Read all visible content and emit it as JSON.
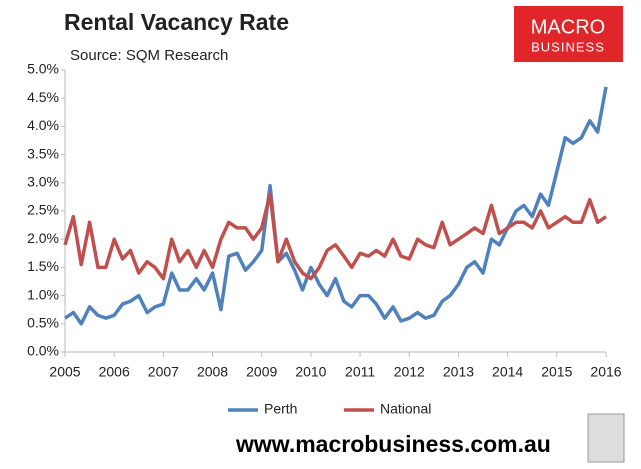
{
  "chart_data": {
    "type": "line",
    "title": "Rental Vacancy Rate",
    "subtitle": "Source: SQM Research",
    "logo": [
      "MACRO",
      "BUSINESS"
    ],
    "footer": "www.macrobusiness.com.au",
    "x": [
      2005,
      2005.17,
      2005.33,
      2005.5,
      2005.67,
      2005.83,
      2006,
      2006.17,
      2006.33,
      2006.5,
      2006.67,
      2006.83,
      2007,
      2007.17,
      2007.33,
      2007.5,
      2007.67,
      2007.83,
      2008,
      2008.17,
      2008.33,
      2008.5,
      2008.67,
      2008.83,
      2009,
      2009.17,
      2009.33,
      2009.5,
      2009.67,
      2009.83,
      2010,
      2010.17,
      2010.33,
      2010.5,
      2010.67,
      2010.83,
      2011,
      2011.17,
      2011.33,
      2011.5,
      2011.67,
      2011.83,
      2012,
      2012.17,
      2012.33,
      2012.5,
      2012.67,
      2012.83,
      2013,
      2013.17,
      2013.33,
      2013.5,
      2013.67,
      2013.83,
      2014,
      2014.17,
      2014.33,
      2014.5,
      2014.67,
      2014.83,
      2015,
      2015.17,
      2015.33,
      2015.5,
      2015.67,
      2015.83,
      2016
    ],
    "series": [
      {
        "name": "Perth",
        "color": "#4f81bd",
        "values": [
          0.6,
          0.7,
          0.5,
          0.8,
          0.65,
          0.6,
          0.65,
          0.85,
          0.9,
          1.0,
          0.7,
          0.8,
          0.85,
          1.4,
          1.1,
          1.1,
          1.3,
          1.1,
          1.4,
          0.75,
          1.7,
          1.75,
          1.45,
          1.6,
          1.8,
          2.95,
          1.6,
          1.75,
          1.45,
          1.1,
          1.5,
          1.2,
          1.0,
          1.3,
          0.9,
          0.8,
          1.0,
          1.0,
          0.85,
          0.6,
          0.8,
          0.55,
          0.6,
          0.7,
          0.6,
          0.65,
          0.9,
          1.0,
          1.2,
          1.5,
          1.6,
          1.4,
          2.0,
          1.9,
          2.2,
          2.5,
          2.6,
          2.4,
          2.8,
          2.6,
          3.2,
          3.8,
          3.7,
          3.8,
          4.1,
          3.9,
          4.7
        ]
      },
      {
        "name": "National",
        "color": "#c0504d",
        "values": [
          1.9,
          2.4,
          1.55,
          2.3,
          1.5,
          1.5,
          2.0,
          1.65,
          1.8,
          1.4,
          1.6,
          1.5,
          1.3,
          2.0,
          1.6,
          1.8,
          1.5,
          1.8,
          1.5,
          2.0,
          2.3,
          2.2,
          2.2,
          2.0,
          2.2,
          2.8,
          1.6,
          2.0,
          1.6,
          1.4,
          1.3,
          1.5,
          1.8,
          1.9,
          1.7,
          1.5,
          1.75,
          1.7,
          1.8,
          1.7,
          2.0,
          1.7,
          1.65,
          2.0,
          1.9,
          1.85,
          2.3,
          1.9,
          2.0,
          2.1,
          2.2,
          2.1,
          2.6,
          2.1,
          2.2,
          2.3,
          2.3,
          2.2,
          2.5,
          2.2,
          2.3,
          2.4,
          2.3,
          2.3,
          2.7,
          2.3,
          2.4
        ]
      }
    ],
    "xlim": [
      2005,
      2016
    ],
    "xticks": [
      2005,
      2006,
      2007,
      2008,
      2009,
      2010,
      2011,
      2012,
      2013,
      2014,
      2015,
      2016
    ],
    "ylim": [
      0,
      5
    ],
    "yticks": [
      {
        "value": 0,
        "label": "0.0%"
      },
      {
        "value": 0.5,
        "label": "0.5%"
      },
      {
        "value": 1,
        "label": "1.0%"
      },
      {
        "value": 1.5,
        "label": "1.5%"
      },
      {
        "value": 2,
        "label": "2.0%"
      },
      {
        "value": 2.5,
        "label": "2.5%"
      },
      {
        "value": 3,
        "label": "3.0%"
      },
      {
        "value": 3.5,
        "label": "3.5%"
      },
      {
        "value": 4,
        "label": "4.0%"
      },
      {
        "value": 4.5,
        "label": "4.5%"
      },
      {
        "value": 5,
        "label": "5.0%"
      }
    ],
    "grid": false,
    "legend": "bottom"
  }
}
